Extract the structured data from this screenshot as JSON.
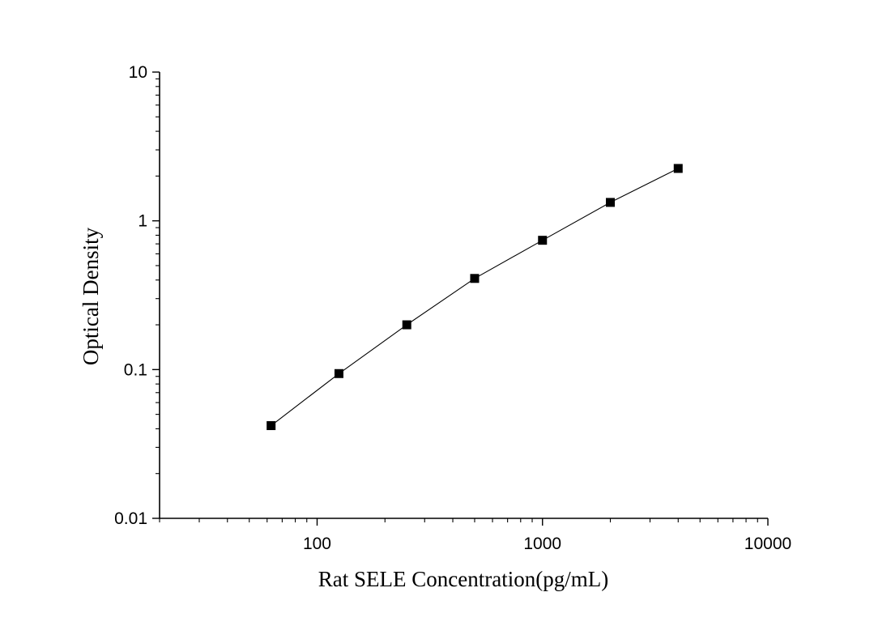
{
  "chart_data": {
    "type": "line",
    "title": "",
    "xlabel": "Rat SELE Concentration(pg/mL)",
    "ylabel": "Optical Density",
    "x_scale": "log",
    "y_scale": "log",
    "xlim": [
      20,
      10000
    ],
    "ylim": [
      0.01,
      10
    ],
    "x_ticks": [
      "100",
      "1000",
      "10000"
    ],
    "y_ticks": [
      "0.01",
      "0.1",
      "1",
      "10"
    ],
    "grid": false,
    "legend": "none",
    "marker": "square",
    "series_color": "#000000",
    "series": [
      {
        "x": [
          62.5,
          125,
          250,
          500,
          1000,
          2000,
          4000
        ],
        "y": [
          0.042,
          0.094,
          0.2,
          0.41,
          0.74,
          1.33,
          2.25
        ]
      }
    ]
  }
}
